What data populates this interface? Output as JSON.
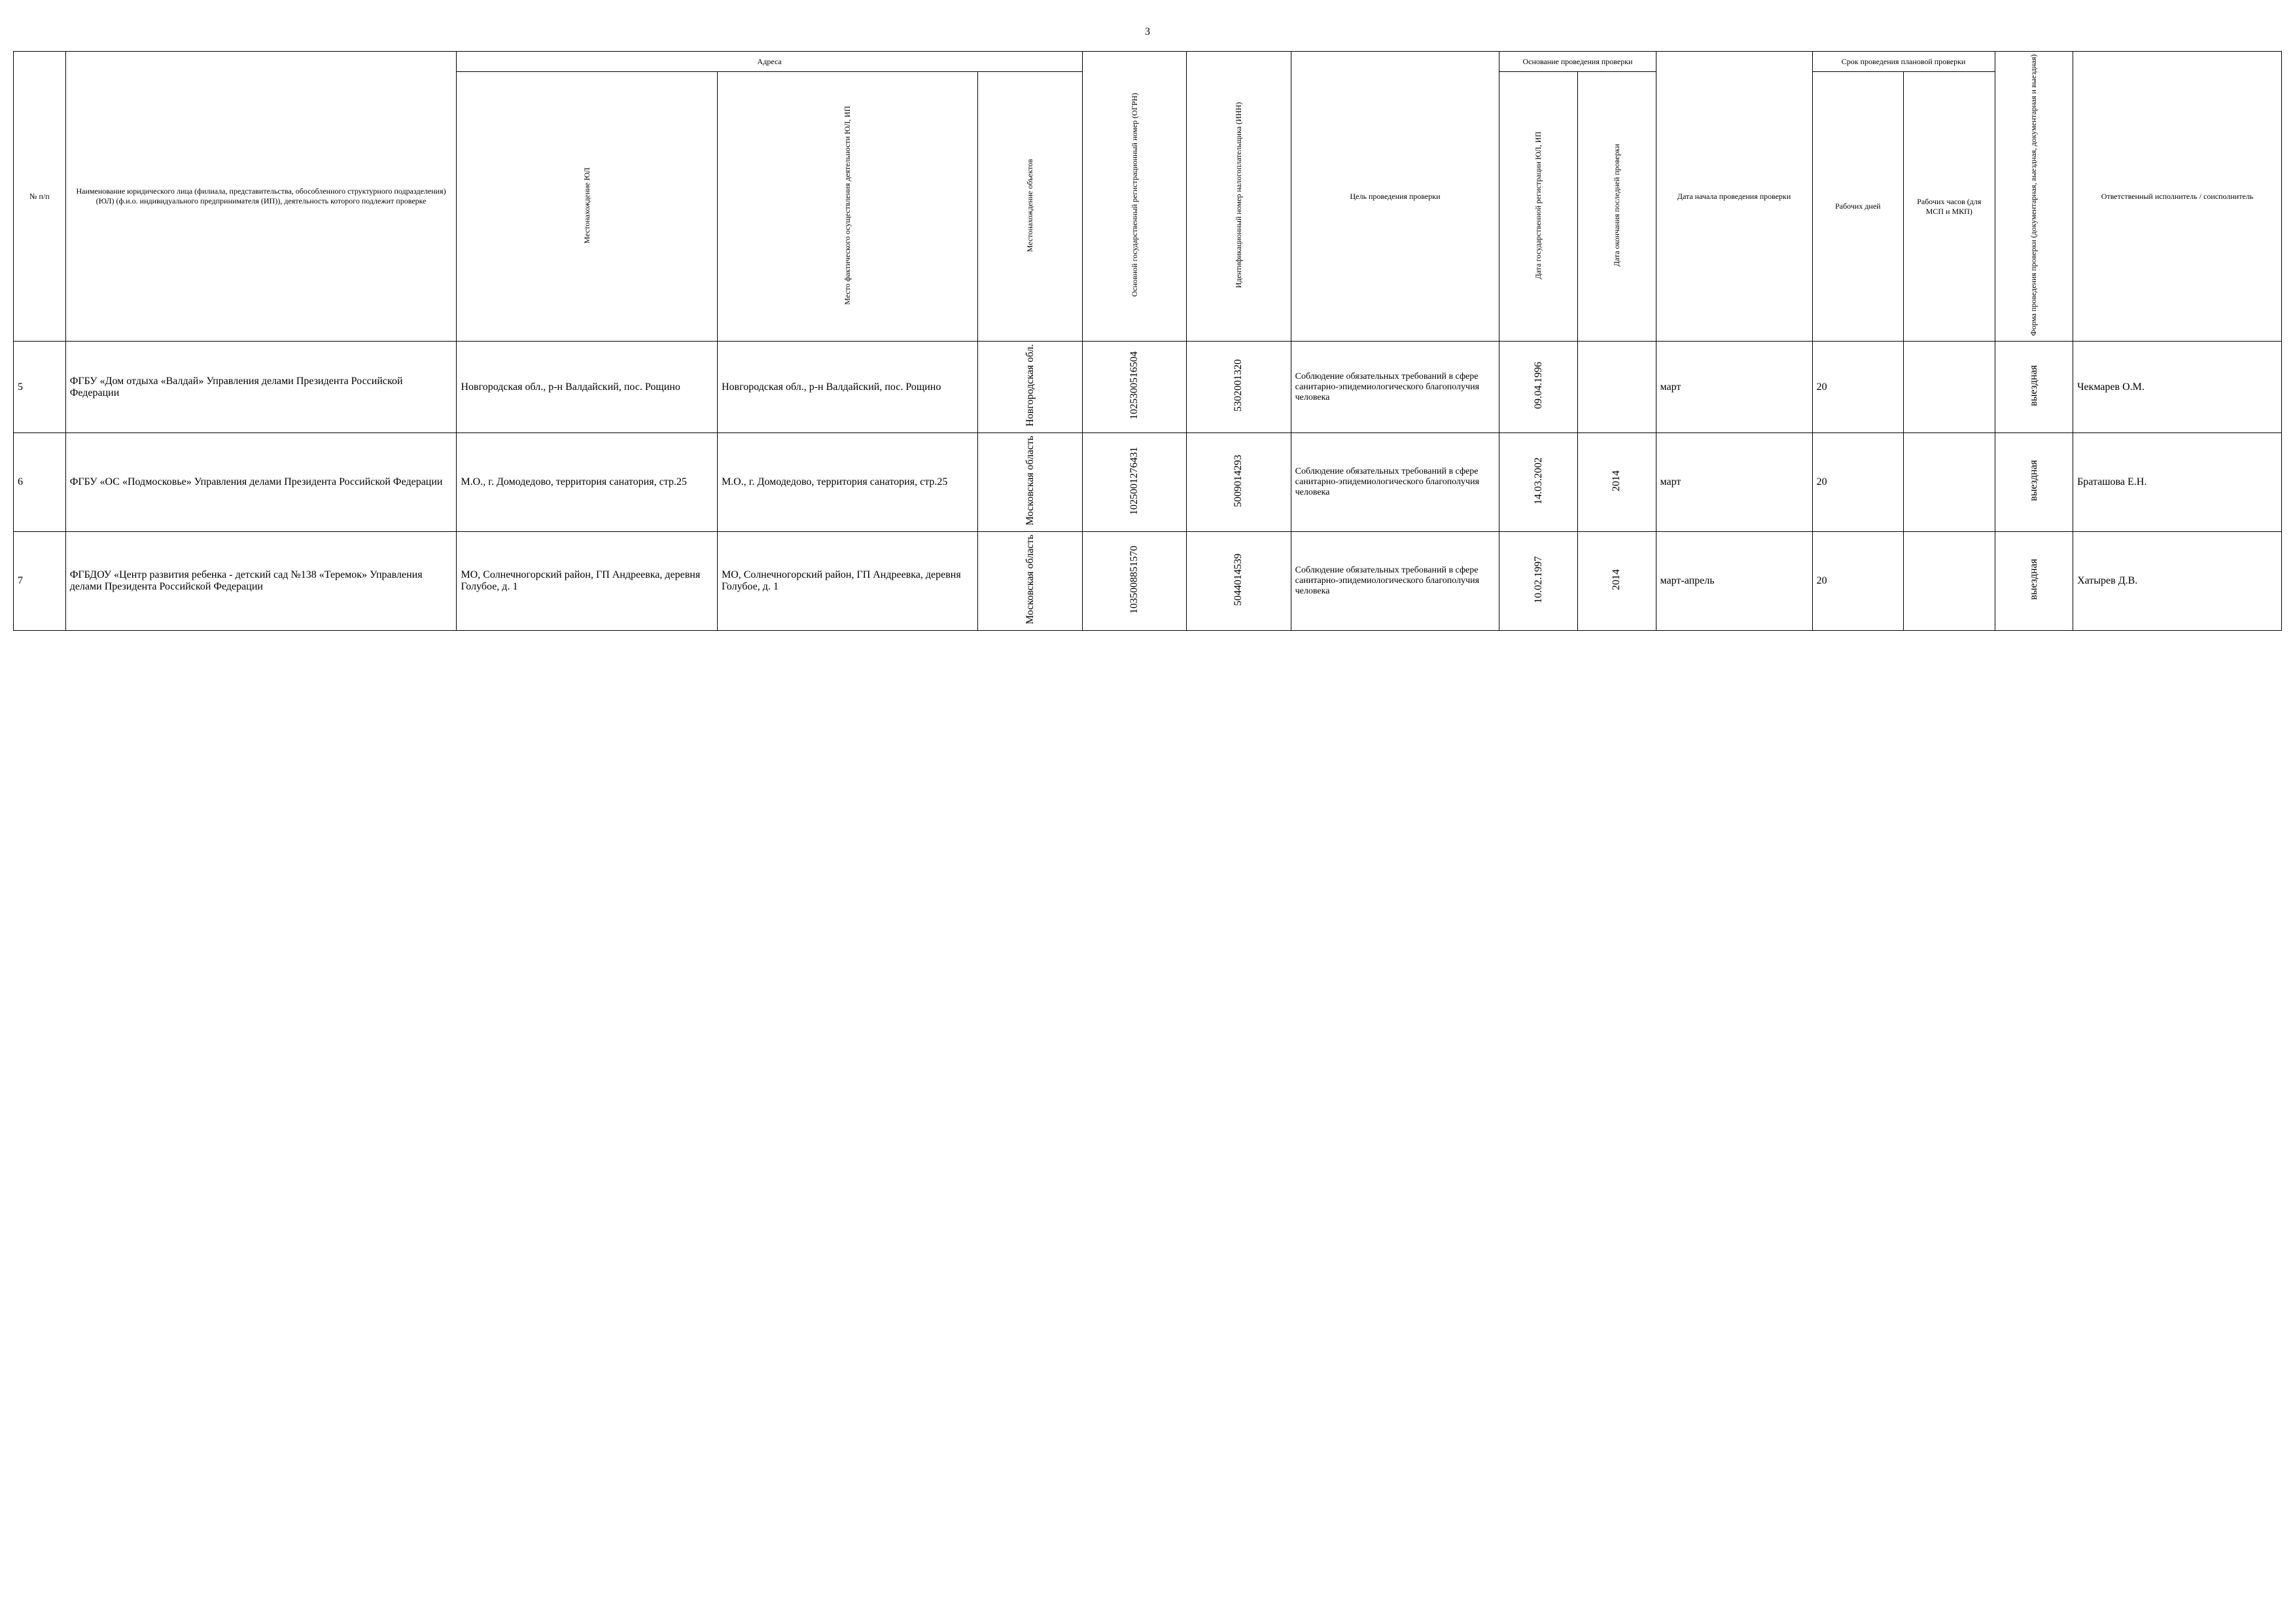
{
  "page_number": "3",
  "headers": {
    "num": "№ п/п",
    "name": "Наименование юридического лица (филиала, представительства, обособленного структурного подразделения) (ЮЛ) (ф.и.о. индивидуального предпринимателя (ИП)), деятельность которого подлежит проверке",
    "addresses": "Адреса",
    "addr_yul": "Местонахождение ЮЛ",
    "addr_fact": "Место фактического осуществления деятельности ЮЛ, ИП",
    "addr_obj": "Местонахождение объектов",
    "ogrn": "Основной государственный регистрационный номер (ОГРН)",
    "inn": "Идентификационный номер налогоплательщика (ИНН)",
    "goal": "Цель проведения проверки",
    "basis": "Основание проведения проверки",
    "reg_date": "Дата государственной регистрации ЮЛ, ИП",
    "last_date": "Дата окончания последней проверки",
    "start": "Дата начала проведения проверки",
    "duration": "Срок проведения плановой проверки",
    "days": "Рабочих дней",
    "hours": "Рабочих часов (для МСП и МКП)",
    "form": "Форма проведения проверки (документарная, выездная, документарная и выездная)",
    "resp": "Ответственный исполнитель / соисполнитель"
  },
  "rows": [
    {
      "num": "5",
      "name": "ФГБУ «Дом отдыха «Валдай» Управления делами Президента Российской Федерации",
      "addr_yul": "Новгородская обл., р-н Валдайский, пос. Рощино",
      "addr_fact": "Новгородская обл., р-н Валдайский, пос. Рощино",
      "addr_obj": "Новгородская обл.",
      "ogrn": "1025300516504",
      "inn": "5302001320",
      "goal": "Соблюдение обязательных требований в сфере санитарно-эпидемиологического благополучия человека",
      "reg_date": "09.04.1996",
      "last_date": "",
      "start": "март",
      "days": "20",
      "hours": "",
      "form": "выездная",
      "resp": "Чекмарев О.М."
    },
    {
      "num": "6",
      "name": "ФГБУ «ОС «Подмосковье» Управления делами Президента Российской Федерации",
      "addr_yul": "М.О., г. Домодедово, территория санатория, стр.25",
      "addr_fact": "М.О., г. Домодедово, территория санатория, стр.25",
      "addr_obj": "Московская область",
      "ogrn": "1025001276431",
      "inn": "5009014293",
      "goal": "Соблюдение обязательных требований в сфере санитарно-эпидемиологического благополучия человека",
      "reg_date": "14.03.2002",
      "last_date": "2014",
      "start": "март",
      "days": "20",
      "hours": "",
      "form": "выездная",
      "resp": "Браташова Е.Н."
    },
    {
      "num": "7",
      "name": "ФГБДОУ «Центр развития ребенка - детский сад №138 «Теремок» Управления делами Президента Российской Федерации",
      "addr_yul": "МО, Солнечногорский район, ГП Андреевка, деревня Голубое, д. 1",
      "addr_fact": "МО, Солнечногорский район, ГП Андреевка, деревня Голубое, д. 1",
      "addr_obj": "Московская область",
      "ogrn": "1035008851570",
      "inn": "5044014539",
      "goal": "Соблюдение обязательных требований в сфере санитарно-эпидемиологического благополучия человека",
      "reg_date": "10.02.1997",
      "last_date": "2014",
      "start": "март-апрель",
      "days": "20",
      "hours": "",
      "form": "выездная",
      "resp": "Хатырев Д.В."
    }
  ]
}
